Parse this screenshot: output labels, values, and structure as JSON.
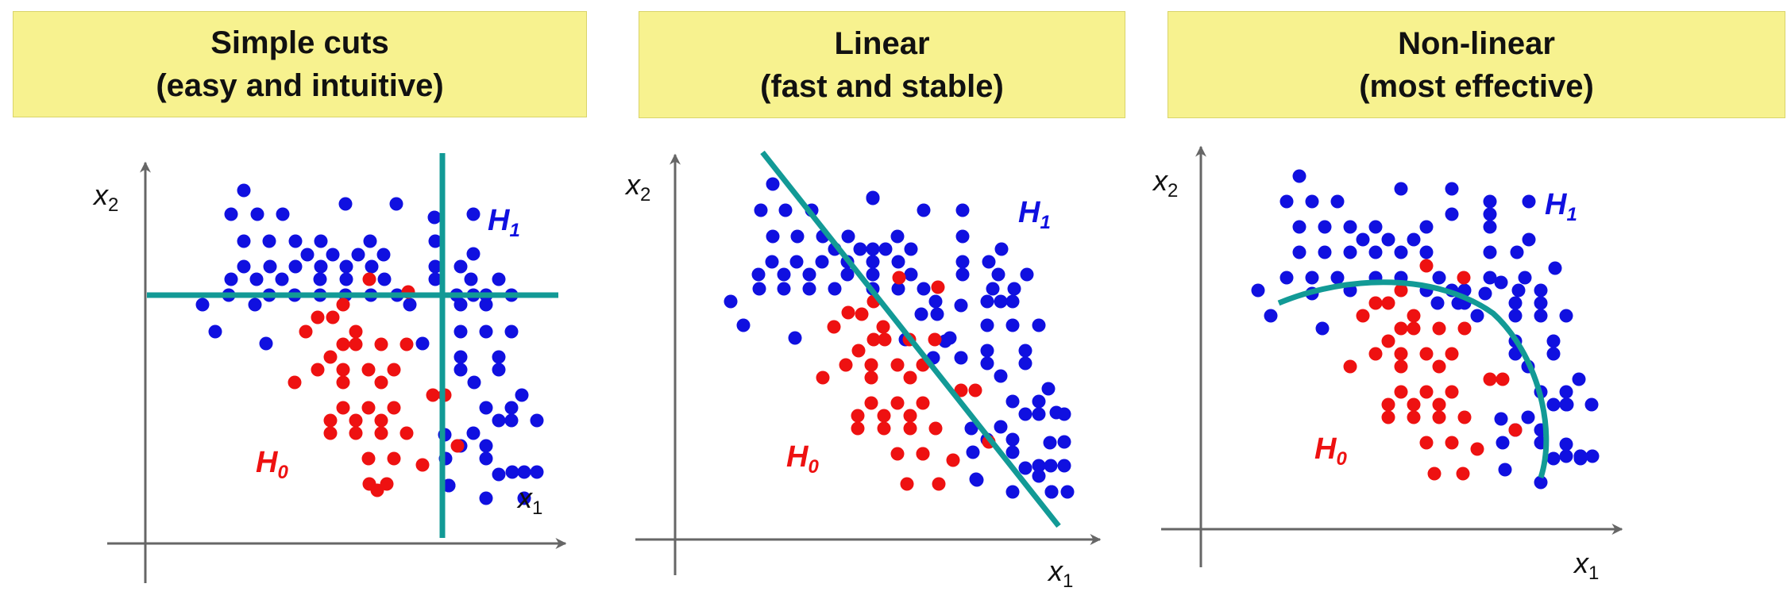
{
  "colors": {
    "class_h1": "#1010e0",
    "class_h0": "#ee1111",
    "boundary": "#129a96",
    "axis": "#666666",
    "title_bg": "#f7f28f"
  },
  "panels": [
    {
      "title_line1": "Simple cuts",
      "title_line2": "(easy and intuitive)",
      "x_axis_label": "x",
      "x_axis_sub": "1",
      "y_axis_label": "x",
      "y_axis_sub": "2",
      "h1_label": "H",
      "h1_sub": "1",
      "h0_label": "H",
      "h0_sub": "0",
      "boundary": "rectangular-cuts"
    },
    {
      "title_line1": "Linear",
      "title_line2": "(fast and stable)",
      "x_axis_label": "x",
      "x_axis_sub": "1",
      "y_axis_label": "x",
      "y_axis_sub": "2",
      "h1_label": "H",
      "h1_sub": "1",
      "h0_label": "H",
      "h0_sub": "0",
      "boundary": "straight-line"
    },
    {
      "title_line1": "Non-linear",
      "title_line2": "(most effective)",
      "x_axis_label": "x",
      "x_axis_sub": "1",
      "y_axis_label": "x",
      "y_axis_sub": "2",
      "h1_label": "H",
      "h1_sub": "1",
      "h0_label": "H",
      "h0_sub": "0",
      "boundary": "curved-arc"
    }
  ]
}
